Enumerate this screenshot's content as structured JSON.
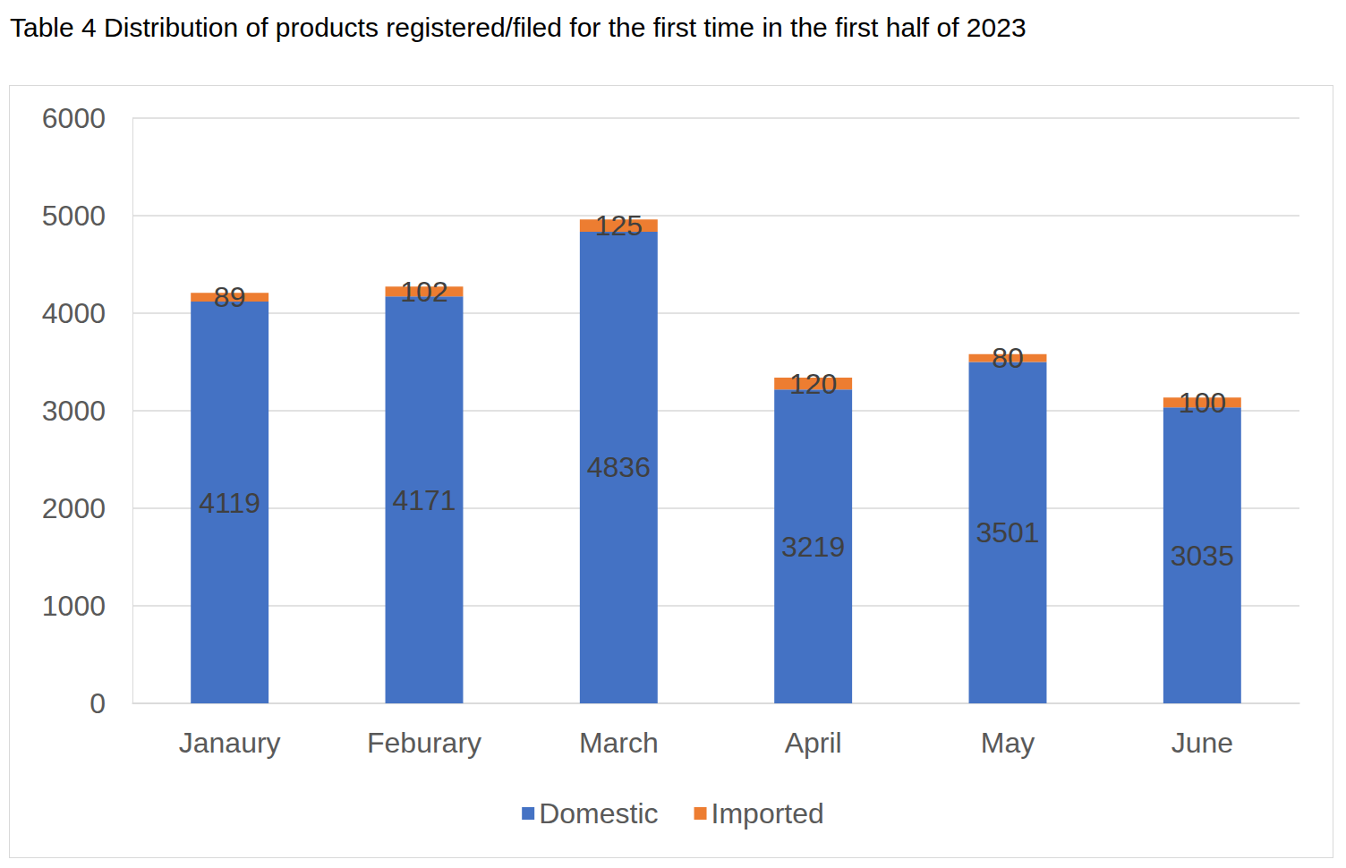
{
  "chart_data": {
    "type": "bar",
    "title": "Table 4 Distribution of products registered/filed for the first time in the first half of 2023",
    "categories": [
      "Janaury",
      "Feburary",
      "March",
      "April",
      "May",
      "June"
    ],
    "series": [
      {
        "name": "Domestic",
        "color": "#4472c4",
        "values": [
          4119,
          4171,
          4836,
          3219,
          3501,
          3035
        ]
      },
      {
        "name": "Imported",
        "color": "#ed7d31",
        "values": [
          89,
          102,
          125,
          120,
          80,
          100
        ]
      }
    ],
    "ylim": [
      0,
      6000
    ],
    "yticks": [
      0,
      1000,
      2000,
      3000,
      4000,
      5000,
      6000
    ],
    "grid": true,
    "stacked": true,
    "data_labels": true,
    "legend": "bottom"
  }
}
